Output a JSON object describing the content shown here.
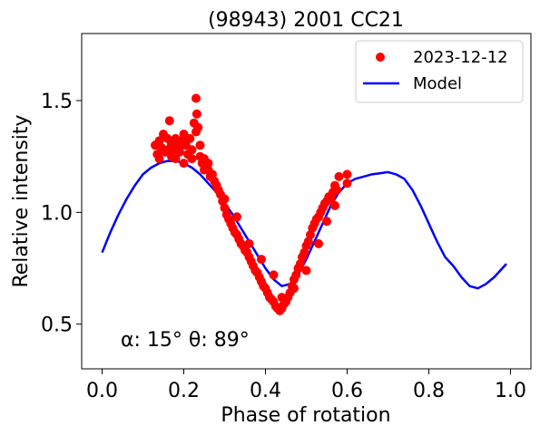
{
  "chart_data": {
    "type": "scatter",
    "title": "(98943) 2001 CC21",
    "xlabel": "Phase of rotation",
    "ylabel": "Relative intensity",
    "xlim": [
      -0.05,
      1.05
    ],
    "ylim": [
      0.3,
      1.8
    ],
    "xticks": [
      0.0,
      0.2,
      0.4,
      0.6,
      0.8,
      1.0
    ],
    "xtick_labels": [
      "0.0",
      "0.2",
      "0.4",
      "0.6",
      "0.8",
      "1.0"
    ],
    "yticks": [
      0.5,
      1.0,
      1.5
    ],
    "ytick_labels": [
      "0.5",
      "1.0",
      "1.5"
    ],
    "grid": false,
    "legend_position": "top-right",
    "annotation": "α: 15° θ: 89°",
    "series": [
      {
        "name": "2023-12-12",
        "kind": "scatter",
        "color": "#ff0000",
        "x": [
          0.13,
          0.135,
          0.14,
          0.145,
          0.15,
          0.155,
          0.16,
          0.165,
          0.17,
          0.17,
          0.175,
          0.18,
          0.18,
          0.185,
          0.19,
          0.195,
          0.2,
          0.2,
          0.205,
          0.21,
          0.215,
          0.22,
          0.225,
          0.23,
          0.23,
          0.232,
          0.235,
          0.24,
          0.24,
          0.245,
          0.25,
          0.255,
          0.26,
          0.265,
          0.27,
          0.275,
          0.28,
          0.285,
          0.29,
          0.295,
          0.3,
          0.305,
          0.31,
          0.315,
          0.32,
          0.325,
          0.33,
          0.335,
          0.34,
          0.345,
          0.35,
          0.355,
          0.36,
          0.365,
          0.37,
          0.375,
          0.38,
          0.385,
          0.39,
          0.395,
          0.4,
          0.405,
          0.41,
          0.415,
          0.42,
          0.425,
          0.43,
          0.435,
          0.44,
          0.445,
          0.45,
          0.455,
          0.46,
          0.465,
          0.47,
          0.475,
          0.48,
          0.485,
          0.49,
          0.495,
          0.5,
          0.505,
          0.51,
          0.515,
          0.52,
          0.525,
          0.53,
          0.535,
          0.54,
          0.545,
          0.55,
          0.555,
          0.56,
          0.565,
          0.57,
          0.575,
          0.58,
          0.6,
          0.6,
          0.14,
          0.16,
          0.17,
          0.19,
          0.2,
          0.22,
          0.25,
          0.26,
          0.28,
          0.3,
          0.33,
          0.36,
          0.39,
          0.42,
          0.44,
          0.47,
          0.5,
          0.53,
          0.55,
          0.57
        ],
        "y": [
          1.3,
          1.26,
          1.32,
          1.29,
          1.35,
          1.27,
          1.33,
          1.41,
          1.3,
          1.25,
          1.28,
          1.33,
          1.24,
          1.3,
          1.27,
          1.31,
          1.22,
          1.35,
          1.3,
          1.26,
          1.33,
          1.28,
          1.4,
          1.51,
          1.36,
          1.44,
          1.38,
          1.3,
          1.25,
          1.22,
          1.24,
          1.2,
          1.19,
          1.16,
          1.17,
          1.14,
          1.12,
          1.1,
          1.08,
          1.05,
          1.02,
          0.99,
          0.97,
          0.95,
          0.93,
          0.91,
          0.9,
          0.88,
          0.86,
          0.85,
          0.83,
          0.82,
          0.8,
          0.78,
          0.76,
          0.74,
          0.73,
          0.71,
          0.69,
          0.67,
          0.66,
          0.64,
          0.62,
          0.61,
          0.6,
          0.58,
          0.57,
          0.56,
          0.57,
          0.59,
          0.6,
          0.62,
          0.64,
          0.67,
          0.7,
          0.72,
          0.75,
          0.77,
          0.8,
          0.82,
          0.85,
          0.87,
          0.9,
          0.93,
          0.95,
          0.97,
          0.98,
          1.0,
          1.02,
          1.04,
          1.05,
          1.07,
          1.06,
          1.09,
          1.12,
          1.1,
          1.16,
          1.17,
          1.13,
          1.24,
          1.28,
          1.31,
          1.29,
          1.33,
          1.24,
          1.19,
          1.22,
          1.12,
          1.06,
          0.98,
          0.86,
          0.79,
          0.72,
          0.62,
          0.66,
          0.74,
          0.86,
          0.96,
          1.03
        ]
      },
      {
        "name": "Model",
        "kind": "line",
        "color": "#0000ff",
        "x": [
          0.0,
          0.02,
          0.04,
          0.06,
          0.08,
          0.1,
          0.12,
          0.14,
          0.16,
          0.18,
          0.2,
          0.22,
          0.24,
          0.26,
          0.28,
          0.3,
          0.32,
          0.34,
          0.36,
          0.38,
          0.4,
          0.42,
          0.44,
          0.46,
          0.48,
          0.5,
          0.52,
          0.54,
          0.56,
          0.58,
          0.6,
          0.62,
          0.64,
          0.66,
          0.68,
          0.7,
          0.72,
          0.74,
          0.76,
          0.78,
          0.8,
          0.82,
          0.84,
          0.86,
          0.88,
          0.9,
          0.92,
          0.94,
          0.96,
          0.99
        ],
        "y": [
          0.82,
          0.91,
          0.99,
          1.06,
          1.12,
          1.17,
          1.2,
          1.22,
          1.23,
          1.23,
          1.22,
          1.2,
          1.17,
          1.13,
          1.09,
          1.04,
          0.99,
          0.93,
          0.87,
          0.81,
          0.75,
          0.7,
          0.67,
          0.68,
          0.72,
          0.79,
          0.87,
          0.95,
          1.03,
          1.09,
          1.13,
          1.15,
          1.16,
          1.17,
          1.175,
          1.18,
          1.17,
          1.15,
          1.1,
          1.03,
          0.95,
          0.87,
          0.8,
          0.76,
          0.71,
          0.67,
          0.66,
          0.68,
          0.71,
          0.77
        ]
      }
    ]
  }
}
